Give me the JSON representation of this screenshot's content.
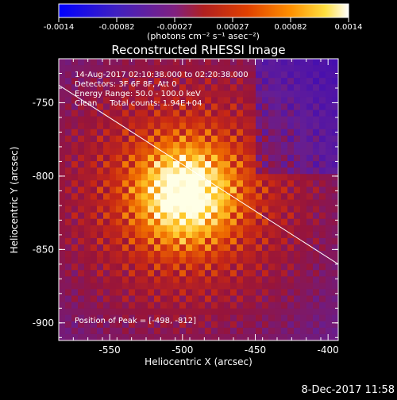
{
  "colorbar": {
    "tick_labels": [
      "-0.0014",
      "-0.00082",
      "-0.00027",
      "0.00027",
      "0.00082",
      "0.0014"
    ],
    "units_label": "(photons cm⁻² s⁻¹ asec⁻²)",
    "range": [
      -0.0014,
      0.0014
    ]
  },
  "chart_data": {
    "type": "heatmap",
    "title": "Reconstructed RHESSI Image",
    "xlabel": "Heliocentric X (arcsec)",
    "ylabel": "Heliocentric Y (arcsec)",
    "xlim": [
      -585,
      -393
    ],
    "ylim": [
      -912,
      -720
    ],
    "x_ticks": [
      -550,
      -500,
      -450,
      -400
    ],
    "y_ticks": [
      -750,
      -800,
      -850,
      -900
    ],
    "annotations": [
      "14-Aug-2017 02:10:38.000 to 02:20:38.000",
      "Detectors: 3F 6F 8F, Att 0",
      "Energy Range: 50.0 - 100.0 keV",
      "Clean     Total counts: 1.94E+04"
    ],
    "peak_label": "Position of Peak = [-498, -812]",
    "peak_position": [
      -498,
      -812
    ],
    "limb_line": [
      [
        -585,
        -738
      ],
      [
        -393,
        -860
      ]
    ],
    "colors": {
      "low": "#0000ff",
      "zero": "#a02020",
      "high": "#ffffff"
    }
  },
  "footer": {
    "timestamp": "8-Dec-2017 11:58"
  }
}
